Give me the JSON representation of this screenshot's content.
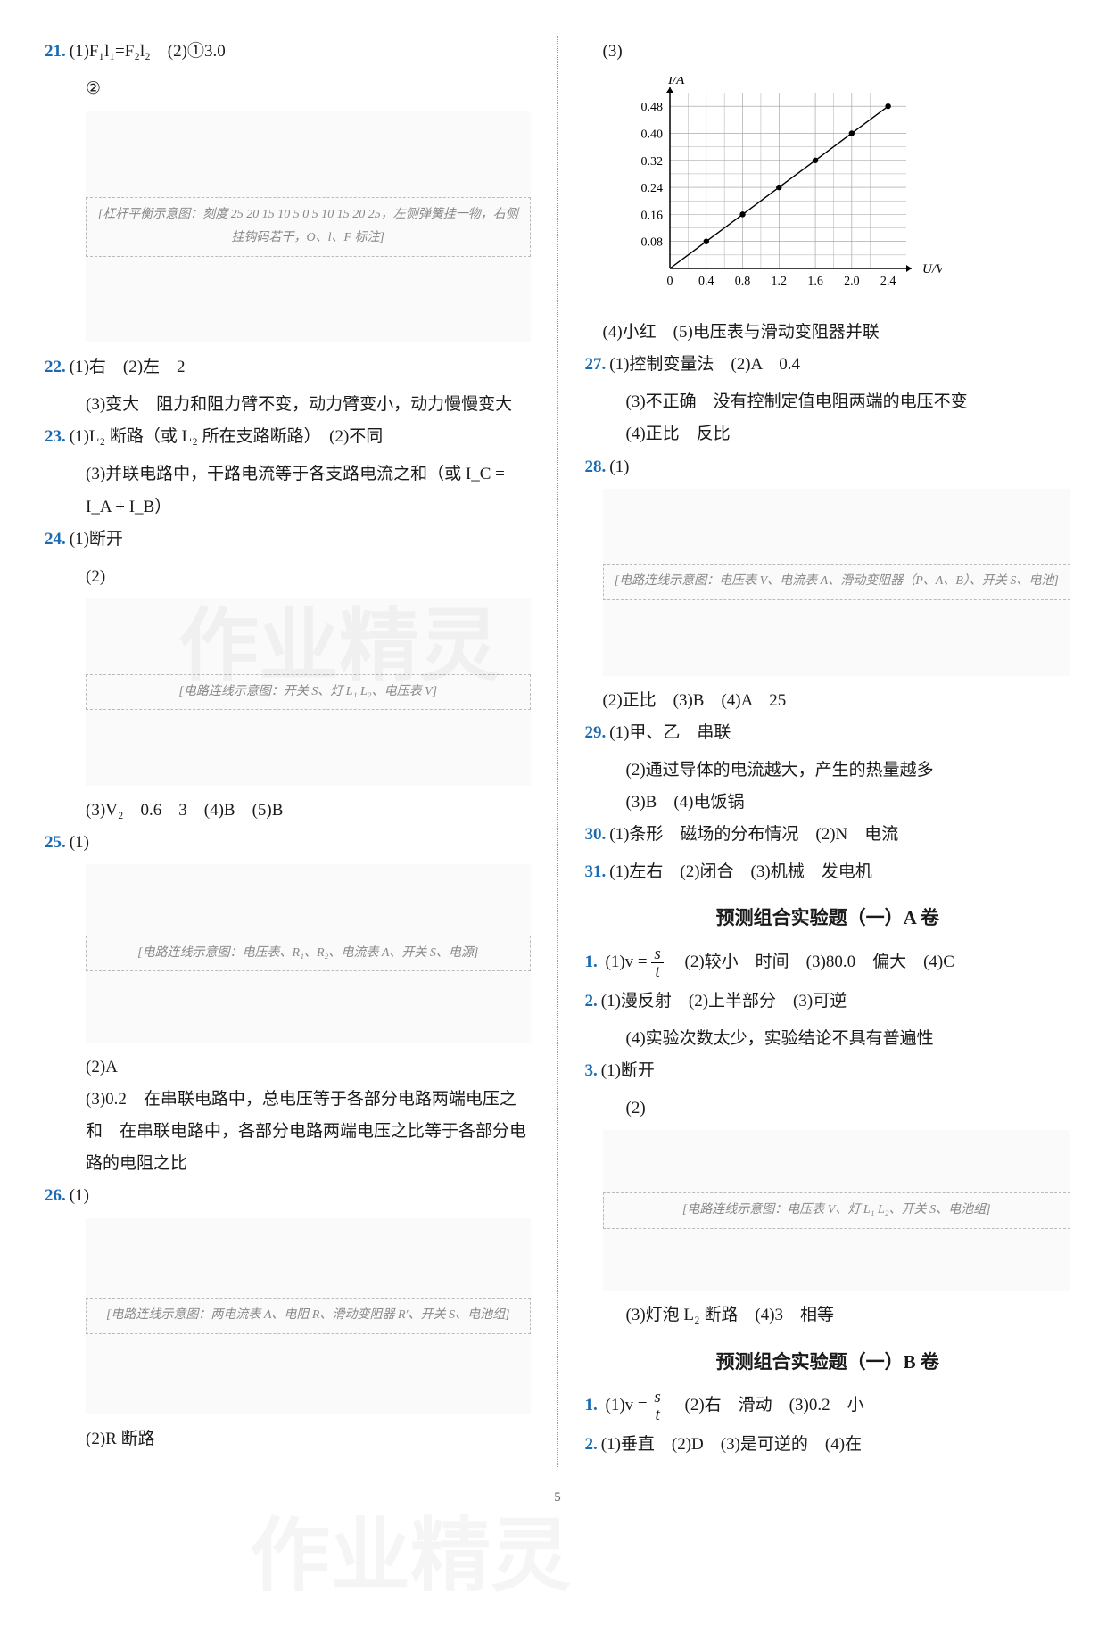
{
  "left": {
    "q21": {
      "num": "21.",
      "line1": "(1)F₁l₁=F₂l₂　(2)①3.0",
      "line2": "②",
      "diagram": "[杠杆平衡示意图：刻度 25 20 15 10 5 0 5 10 15 20 25，左侧弹簧挂一物，右侧挂钩码若干，O、l、F 标注]"
    },
    "q22": {
      "num": "22.",
      "p1": "(1)右　(2)左　2",
      "p2": "(3)变大　阻力和阻力臂不变，动力臂变小，动力慢慢变大"
    },
    "q23": {
      "num": "23.",
      "p1": "(1)L₂ 断路（或 L₂ 所在支路断路）　(2)不同",
      "p2": "(3)并联电路中，干路电流等于各支路电流之和（或 I_C = I_A + I_B）"
    },
    "q24": {
      "num": "24.",
      "p1": "(1)断开",
      "p2": "(2)",
      "diagram": "[电路连线示意图：开关 S、灯 L₁ L₂、电压表 V]",
      "p3": "(3)V₂　0.6　3　(4)B　(5)B"
    },
    "q25": {
      "num": "25.",
      "p1": "(1)",
      "diagram": "[电路连线示意图：电压表、R₁、R₂、电流表 A、开关 S、电源]",
      "p2": "(2)A",
      "p3": "(3)0.2　在串联电路中，总电压等于各部分电路两端电压之和　在串联电路中，各部分电路两端电压之比等于各部分电路的电阻之比"
    },
    "q26": {
      "num": "26.",
      "p1": "(1)",
      "diagram": "[电路连线示意图：两电流表 A、电阻 R、滑动变阻器 R′、开关 S、电池组]",
      "p2": "(2)R 断路"
    }
  },
  "right": {
    "q26c": {
      "p1": "(3)",
      "chart": {
        "type": "line",
        "title": "",
        "xlabel": "U/V",
        "ylabel": "I/A",
        "x_ticks": [
          0,
          0.4,
          0.8,
          1.2,
          1.6,
          2.0,
          2.4
        ],
        "y_ticks": [
          0,
          0.08,
          0.16,
          0.24,
          0.32,
          0.4,
          0.48
        ],
        "xlim": [
          0,
          2.6
        ],
        "ylim": [
          0,
          0.52
        ],
        "points_x": [
          0.4,
          0.8,
          1.2,
          1.6,
          2.0,
          2.4
        ],
        "points_y": [
          0.08,
          0.16,
          0.24,
          0.32,
          0.4,
          0.48
        ],
        "marker_color": "#000000",
        "marker_size": 3.2,
        "line_color": "#000000",
        "line_width": 1.4,
        "grid_color": "#9a9a9a",
        "background_color": "#ffffff",
        "axis_color": "#000000",
        "arrowheads": true
      },
      "p2": "(4)小红　(5)电压表与滑动变阻器并联"
    },
    "q27": {
      "num": "27.",
      "p1": "(1)控制变量法　(2)A　0.4",
      "p2": "(3)不正确　没有控制定值电阻两端的电压不变",
      "p3": "(4)正比　反比"
    },
    "q28": {
      "num": "28.",
      "p1": "(1)",
      "diagram": "[电路连线示意图：电压表 V、电流表 A、滑动变阻器（P、A、B）、开关 S、电池]",
      "p2": "(2)正比　(3)B　(4)A　25"
    },
    "q29": {
      "num": "29.",
      "p1": "(1)甲、乙　串联",
      "p2": "(2)通过导体的电流越大，产生的热量越多",
      "p3": "(3)B　(4)电饭锅"
    },
    "q30": {
      "num": "30.",
      "p1": "(1)条形　磁场的分布情况　(2)N　电流"
    },
    "q31": {
      "num": "31.",
      "p1": "(1)左右　(2)闭合　(3)机械　发电机"
    },
    "headingA": "预测组合实验题（一）A 卷",
    "a1": {
      "num": "1.",
      "p1_pre": "(1)v = ",
      "frac_n": "s",
      "frac_d": "t",
      "p1_post": "　(2)较小　时间　(3)80.0　偏大　(4)C"
    },
    "a2": {
      "num": "2.",
      "p1": "(1)漫反射　(2)上半部分　(3)可逆",
      "p2": "(4)实验次数太少，实验结论不具有普遍性"
    },
    "a3": {
      "num": "3.",
      "p1": "(1)断开",
      "p2": "(2)",
      "diagram": "[电路连线示意图：电压表 V、灯 L₁ L₂、开关 S、电池组]",
      "p3": "(3)灯泡 L₂ 断路　(4)3　相等"
    },
    "headingB": "预测组合实验题（一）B 卷",
    "b1": {
      "num": "1.",
      "p1_pre": "(1)v = ",
      "frac_n": "s",
      "frac_d": "t",
      "p1_post": "　(2)右　滑动　(3)0.2　小"
    },
    "b2": {
      "num": "2.",
      "p1": "(1)垂直　(2)D　(3)是可逆的　(4)在"
    }
  },
  "watermark": "作业精灵",
  "page_number": "5"
}
